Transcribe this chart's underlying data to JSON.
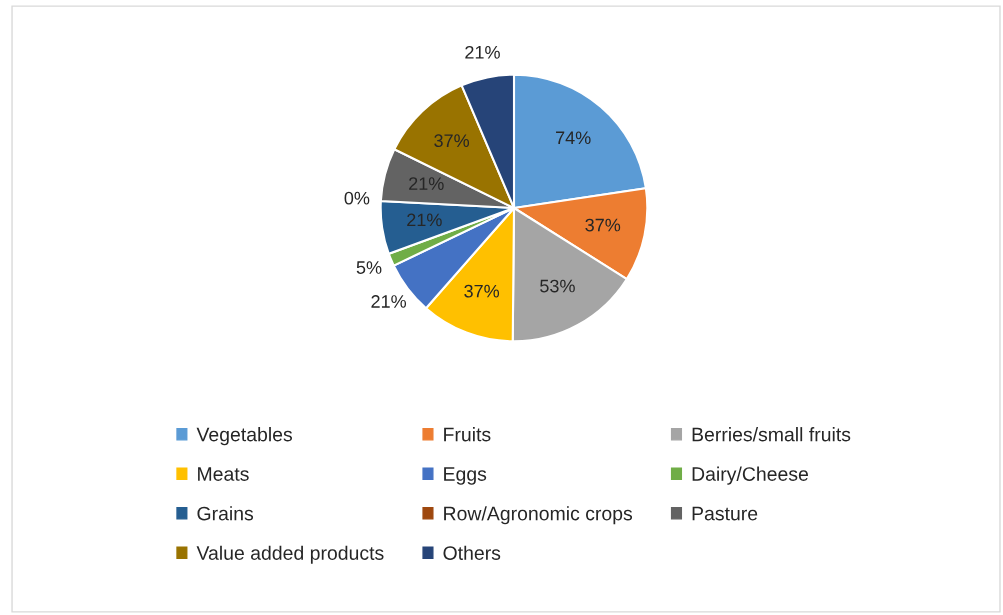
{
  "chart_data": {
    "type": "pie",
    "categories": [
      "Vegetables",
      "Fruits",
      "Berries/small fruits",
      "Meats",
      "Eggs",
      "Dairy/Cheese",
      "Grains",
      "Row/Agronomic crops",
      "Pasture",
      "Value added products",
      "Others"
    ],
    "values": [
      74,
      37,
      53,
      37,
      21,
      5,
      21,
      0,
      21,
      37,
      21
    ],
    "value_labels": [
      "74%",
      "37%",
      "53%",
      "37%",
      "21%",
      "5%",
      "21%",
      "0%",
      "21%",
      "37%",
      "21%"
    ],
    "colors": [
      "#5b9bd5",
      "#ed7d31",
      "#a5a5a5",
      "#ffc000",
      "#4472c4",
      "#70ad47",
      "#255e91",
      "#9e480e",
      "#636363",
      "#997300",
      "#264478"
    ],
    "legend": "bottom"
  }
}
